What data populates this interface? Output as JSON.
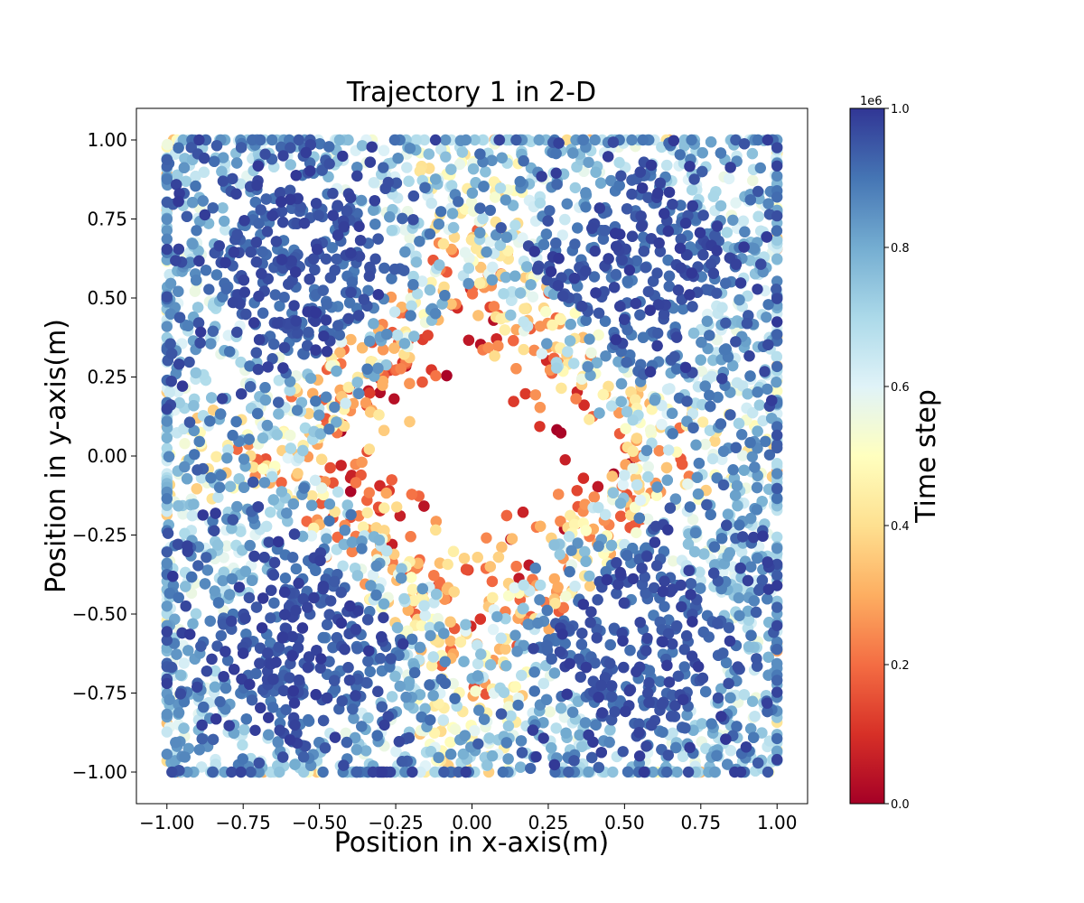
{
  "chart_data": {
    "type": "scatter",
    "title": "Trajectory 1 in 2-D",
    "xlabel": "Position in x-axis(m)",
    "ylabel": "Position in y-axis(m)",
    "xlim": [
      -1.1,
      1.1
    ],
    "ylim": [
      -1.1,
      1.1
    ],
    "xticks": [
      -1.0,
      -0.75,
      -0.5,
      -0.25,
      0.0,
      0.25,
      0.5,
      0.75,
      1.0
    ],
    "xtick_labels": [
      "−1.00",
      "−0.75",
      "−0.50",
      "−0.25",
      "0.00",
      "0.25",
      "0.50",
      "0.75",
      "1.00"
    ],
    "yticks": [
      -1.0,
      -0.75,
      -0.5,
      -0.25,
      0.0,
      0.25,
      0.5,
      0.75,
      1.0
    ],
    "ytick_labels": [
      "−1.00",
      "−0.75",
      "−0.50",
      "−0.25",
      "0.00",
      "0.25",
      "0.50",
      "0.75",
      "1.00"
    ],
    "grid": false,
    "colorbar": {
      "label": "Time step",
      "colormap": "RdYlBu",
      "range": [
        0,
        1000000
      ],
      "multiplier_label": "1e6",
      "ticks": [
        0.0,
        0.2,
        0.4,
        0.6,
        0.8,
        1.0
      ],
      "tick_labels": [
        "0.0",
        "0.2",
        "0.4",
        "0.6",
        "0.8",
        "1.0"
      ]
    },
    "point_color_range": [
      "#a50026",
      "#313695"
    ],
    "series": [
      {
        "points_described": "dense random-walk trajectory filling the square [-1,1]x[-1,1]; early time steps (red/orange) near the origin, late time steps (dark blue) concentrated in the four quadrant corners"
      }
    ]
  }
}
